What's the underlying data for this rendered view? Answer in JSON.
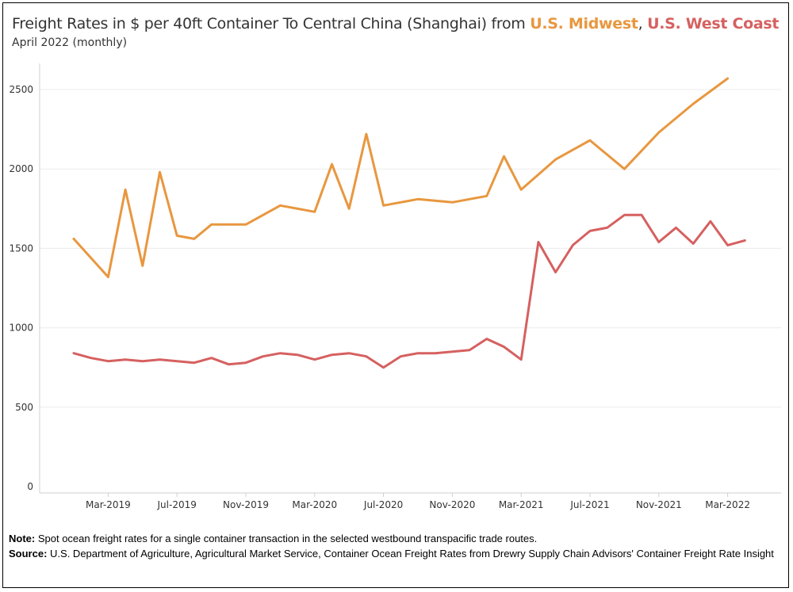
{
  "title": {
    "prefix": "Freight Rates in $ per 40ft Container To Central China (Shanghai) from ",
    "series1": "U.S. Midwest",
    "sep": ", ",
    "series2": "U.S. West Coast"
  },
  "subtitle": "April 2022 (monthly)",
  "notes": {
    "note_label": "Note:",
    "note_text": "Spot ocean freight rates for a single container transaction in the selected westbound transpacific trade routes.",
    "source_label": "Source:",
    "source_text": "U.S. Department of Agriculture, Agricultural Market Service, Container Ocean Freight Rates from Drewry Supply Chain Advisors' Container Freight Rate Insight"
  },
  "colors": {
    "midwest": "#e8973f",
    "westcoast": "#d66060",
    "grid": "#ececec",
    "axis": "#cfcfcf"
  },
  "chart_data": {
    "type": "line",
    "title": "Freight Rates in $ per 40ft Container To Central China (Shanghai) from U.S. Midwest, U.S. West Coast",
    "xlabel": "",
    "ylabel": "",
    "ylim": [
      0,
      2650
    ],
    "yticks": [
      0,
      500,
      1000,
      1500,
      2000,
      2500
    ],
    "x_start": "Jan-2019",
    "xtick_labels": [
      "Mar-2019",
      "Jul-2019",
      "Nov-2019",
      "Mar-2020",
      "Jul-2020",
      "Nov-2020",
      "Mar-2021",
      "Jul-2021",
      "Nov-2021",
      "Mar-2022"
    ],
    "xtick_month_index": [
      2,
      6,
      10,
      14,
      18,
      22,
      26,
      30,
      34,
      38
    ],
    "series": [
      {
        "name": "U.S. Midwest",
        "color": "#e8973f",
        "month_index": [
          0,
          2,
          3,
          4,
          5,
          6,
          7,
          8,
          10,
          12,
          14,
          15,
          16,
          17,
          18,
          20,
          22,
          24,
          25,
          26,
          28,
          30,
          32,
          34,
          36,
          38
        ],
        "values": [
          1560,
          1320,
          1870,
          1390,
          1980,
          1580,
          1560,
          1650,
          1650,
          1770,
          1730,
          2030,
          1750,
          2220,
          1770,
          1810,
          1790,
          1830,
          2080,
          1870,
          2060,
          2180,
          2000,
          2230,
          2410,
          2570
        ]
      },
      {
        "name": "U.S. West Coast",
        "color": "#d66060",
        "month_index": [
          0,
          1,
          2,
          3,
          4,
          5,
          6,
          7,
          8,
          9,
          10,
          11,
          12,
          13,
          14,
          15,
          16,
          17,
          18,
          19,
          20,
          21,
          22,
          23,
          24,
          25,
          26,
          27,
          28,
          29,
          30,
          31,
          32,
          33,
          34,
          35,
          36,
          37,
          38,
          39
        ],
        "values": [
          840,
          810,
          790,
          800,
          790,
          800,
          790,
          780,
          810,
          770,
          780,
          820,
          840,
          830,
          800,
          830,
          840,
          820,
          750,
          820,
          840,
          840,
          850,
          860,
          930,
          880,
          800,
          1540,
          1350,
          1520,
          1610,
          1630,
          1710,
          1710,
          1540,
          1630,
          1530,
          1670,
          1520,
          1550
        ]
      }
    ]
  }
}
